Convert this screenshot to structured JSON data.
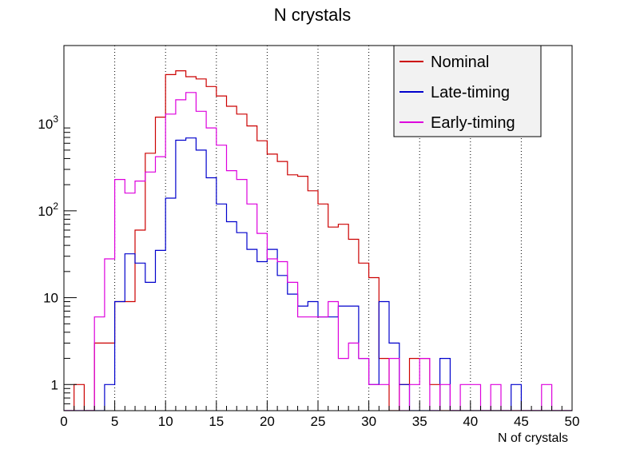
{
  "chart_data": {
    "type": "line",
    "style": "step-histogram",
    "title": "N crystals",
    "xlabel": "N of crystals",
    "ylabel": "",
    "xlim": [
      0,
      50
    ],
    "ylim": [
      0.5,
      8000
    ],
    "yscale": "log",
    "grid": "vertical-dotted",
    "legend_position": "top-right",
    "x_ticks": [
      "0",
      "5",
      "10",
      "15",
      "20",
      "25",
      "30",
      "35",
      "40",
      "45",
      "50"
    ],
    "y_ticks": [
      {
        "value": 1,
        "base": "1",
        "exp": ""
      },
      {
        "value": 10,
        "base": "10",
        "exp": ""
      },
      {
        "value": 100,
        "base": "10",
        "exp": "2"
      },
      {
        "value": 1000,
        "base": "10",
        "exp": "3"
      }
    ],
    "bin_edges_start": 0,
    "bin_width": 1,
    "series": [
      {
        "name": "Nominal",
        "color": "#cc0000",
        "values": [
          0,
          1,
          0,
          3,
          3,
          9,
          9,
          60,
          460,
          1200,
          3700,
          4100,
          3500,
          3300,
          2700,
          2100,
          1600,
          1300,
          950,
          640,
          450,
          370,
          260,
          250,
          170,
          120,
          65,
          70,
          47,
          25,
          17,
          2,
          0,
          1,
          2,
          2,
          1,
          0,
          0,
          0,
          0,
          0,
          0,
          0,
          0,
          0,
          0,
          0,
          0,
          0
        ]
      },
      {
        "name": "Late-timing",
        "color": "#0000cc",
        "values": [
          0,
          0,
          0,
          0,
          1,
          9,
          32,
          25,
          15,
          35,
          140,
          650,
          690,
          500,
          240,
          120,
          75,
          56,
          36,
          26,
          36,
          18,
          11,
          8,
          9,
          6,
          6,
          8,
          8,
          2,
          1,
          9,
          3,
          1,
          0,
          0,
          0,
          2,
          0,
          0,
          0,
          0,
          0,
          0,
          1,
          0,
          0,
          0,
          0,
          0
        ]
      },
      {
        "name": "Early-timing",
        "color": "#dd00dd",
        "values": [
          0,
          0,
          0,
          6,
          28,
          230,
          160,
          220,
          280,
          420,
          1300,
          1900,
          2300,
          1400,
          900,
          570,
          290,
          230,
          120,
          55,
          28,
          26,
          15,
          6,
          6,
          6,
          9,
          2,
          3,
          2,
          1,
          1,
          2,
          0,
          1,
          2,
          0,
          1,
          0,
          1,
          1,
          0,
          1,
          0,
          0,
          0,
          0,
          1,
          0,
          0
        ]
      }
    ]
  }
}
